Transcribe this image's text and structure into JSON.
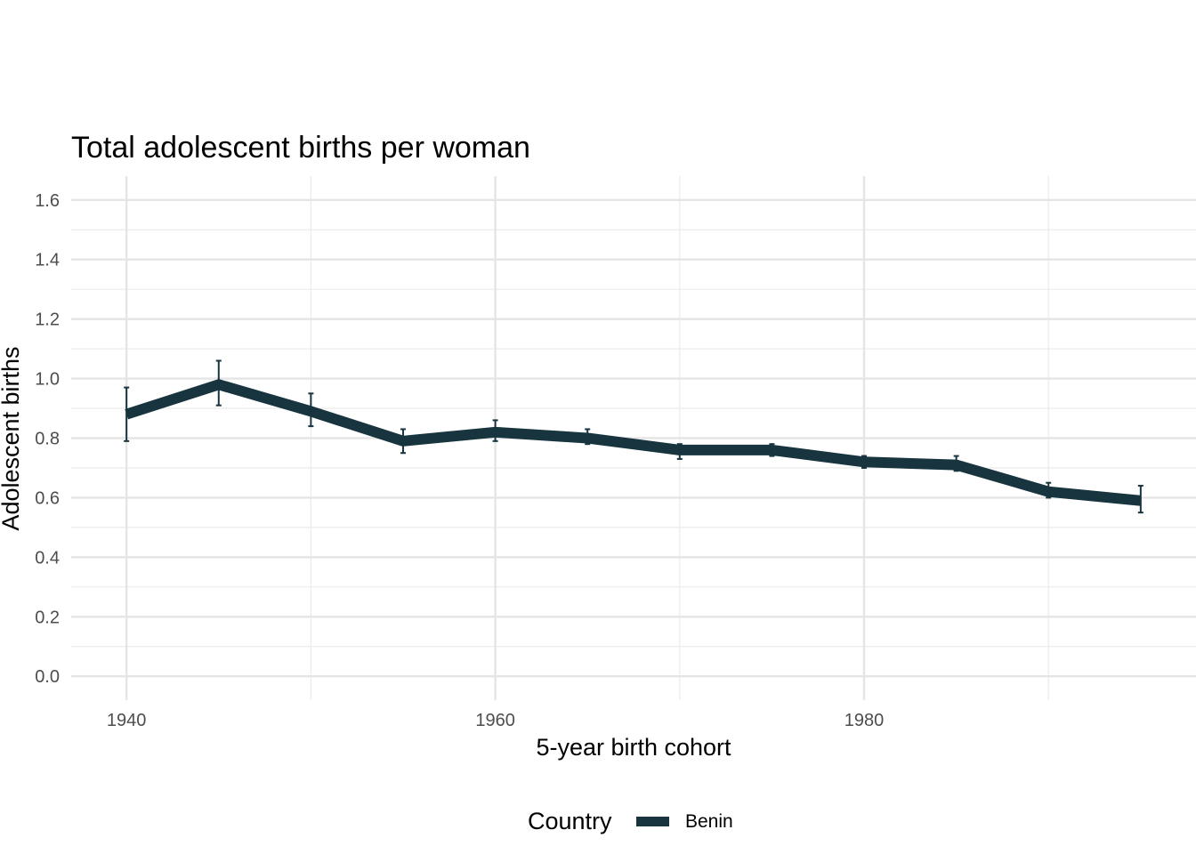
{
  "chart_data": {
    "type": "line",
    "title": "Total adolescent births per woman",
    "xlabel": "5-year birth cohort",
    "ylabel": "Adolescent births",
    "xlim": [
      1937,
      1998
    ],
    "ylim": [
      -0.08,
      1.68
    ],
    "x_ticks": [
      1940,
      1960,
      1980
    ],
    "x_tick_labels": [
      "1940",
      "1960",
      "1980"
    ],
    "x_minor_ticks": [
      1950,
      1970,
      1990
    ],
    "y_ticks": [
      0.0,
      0.2,
      0.4,
      0.6,
      0.8,
      1.0,
      1.2,
      1.4,
      1.6
    ],
    "y_tick_labels": [
      "0.0",
      "0.2",
      "0.4",
      "0.6",
      "0.8",
      "1.0",
      "1.2",
      "1.4",
      "1.6"
    ],
    "y_minor_ticks": [
      0.1,
      0.3,
      0.5,
      0.7,
      0.9,
      1.1,
      1.3,
      1.5
    ],
    "grid": true,
    "legend": {
      "title": "Country",
      "position": "bottom"
    },
    "series": [
      {
        "name": "Benin",
        "color": "#17343f",
        "x": [
          1940,
          1945,
          1950,
          1955,
          1960,
          1965,
          1970,
          1975,
          1980,
          1985,
          1990,
          1995
        ],
        "values": [
          0.88,
          0.98,
          0.89,
          0.79,
          0.82,
          0.8,
          0.76,
          0.76,
          0.72,
          0.71,
          0.62,
          0.59
        ],
        "lower": [
          0.79,
          0.91,
          0.84,
          0.75,
          0.79,
          0.78,
          0.73,
          0.74,
          0.7,
          0.69,
          0.6,
          0.55
        ],
        "upper": [
          0.97,
          1.06,
          0.95,
          0.83,
          0.86,
          0.83,
          0.78,
          0.78,
          0.74,
          0.74,
          0.65,
          0.64
        ]
      }
    ]
  }
}
